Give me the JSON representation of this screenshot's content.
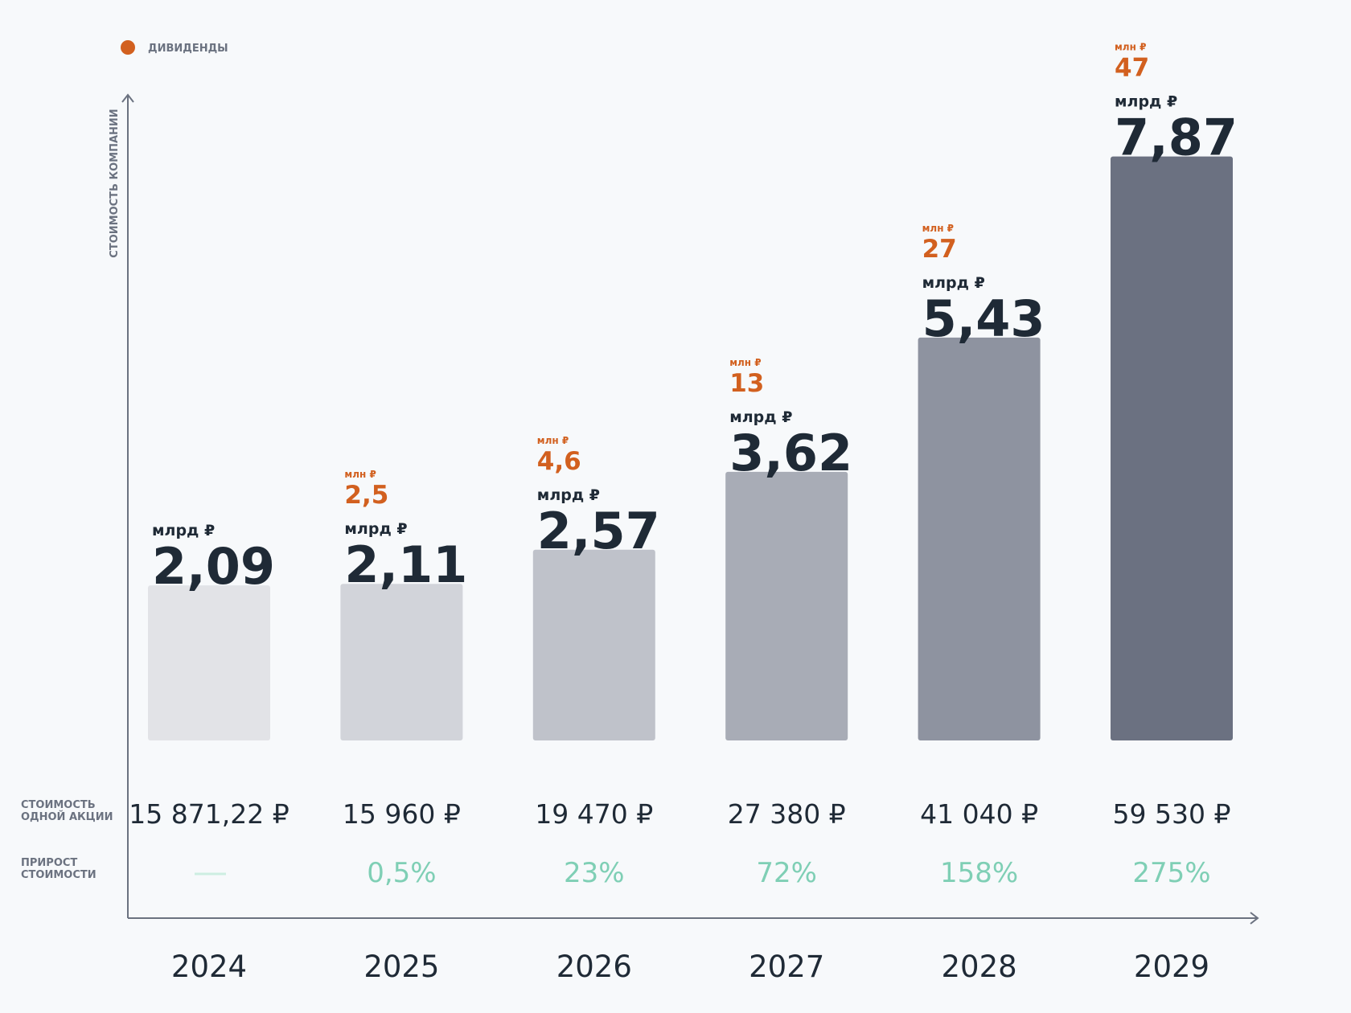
{
  "chart_data": {
    "type": "bar",
    "y_label": "СТОИМОСТЬ КОМПАНИИ",
    "categories": [
      "2024",
      "2025",
      "2026",
      "2027",
      "2028",
      "2029"
    ],
    "values": [
      2.09,
      2.11,
      2.57,
      3.62,
      5.43,
      7.87
    ],
    "value_labels": [
      "2,09",
      "2,11",
      "2,57",
      "3,62",
      "5,43",
      "7,87"
    ],
    "value_unit": "млрд ₽",
    "colors": [
      "#e2e3e7",
      "#d2d4da",
      "#bfc2ca",
      "#a8acb6",
      "#8e93a0",
      "#6b7181"
    ],
    "ylim": [
      0,
      8.7
    ],
    "dividends": {
      "name": "ДИВИДЕНДЫ",
      "color": "#d2601f",
      "unit": "млн ₽",
      "values": [
        null,
        2.5,
        4.6,
        13,
        27,
        47
      ],
      "value_labels": [
        null,
        "2,5",
        "4,6",
        "13",
        "27",
        "47"
      ]
    },
    "share_price": {
      "label": [
        "СТОИМОСТЬ",
        "ОДНОЙ АКЦИИ"
      ],
      "values": [
        15871.22,
        15960,
        19470,
        27380,
        41040,
        59530
      ],
      "value_labels": [
        "15 871,22 ₽",
        "15 960 ₽",
        "19 470 ₽",
        "27 380 ₽",
        "41 040 ₽",
        "59 530 ₽"
      ]
    },
    "growth": {
      "label": [
        "ПРИРОСТ",
        "СТОИМОСТИ"
      ],
      "color": "#7fcfb5",
      "values": [
        null,
        0.5,
        23,
        72,
        158,
        275
      ],
      "value_labels": [
        null,
        "0,5%",
        "23%",
        "72%",
        "158%",
        "275%"
      ]
    }
  }
}
